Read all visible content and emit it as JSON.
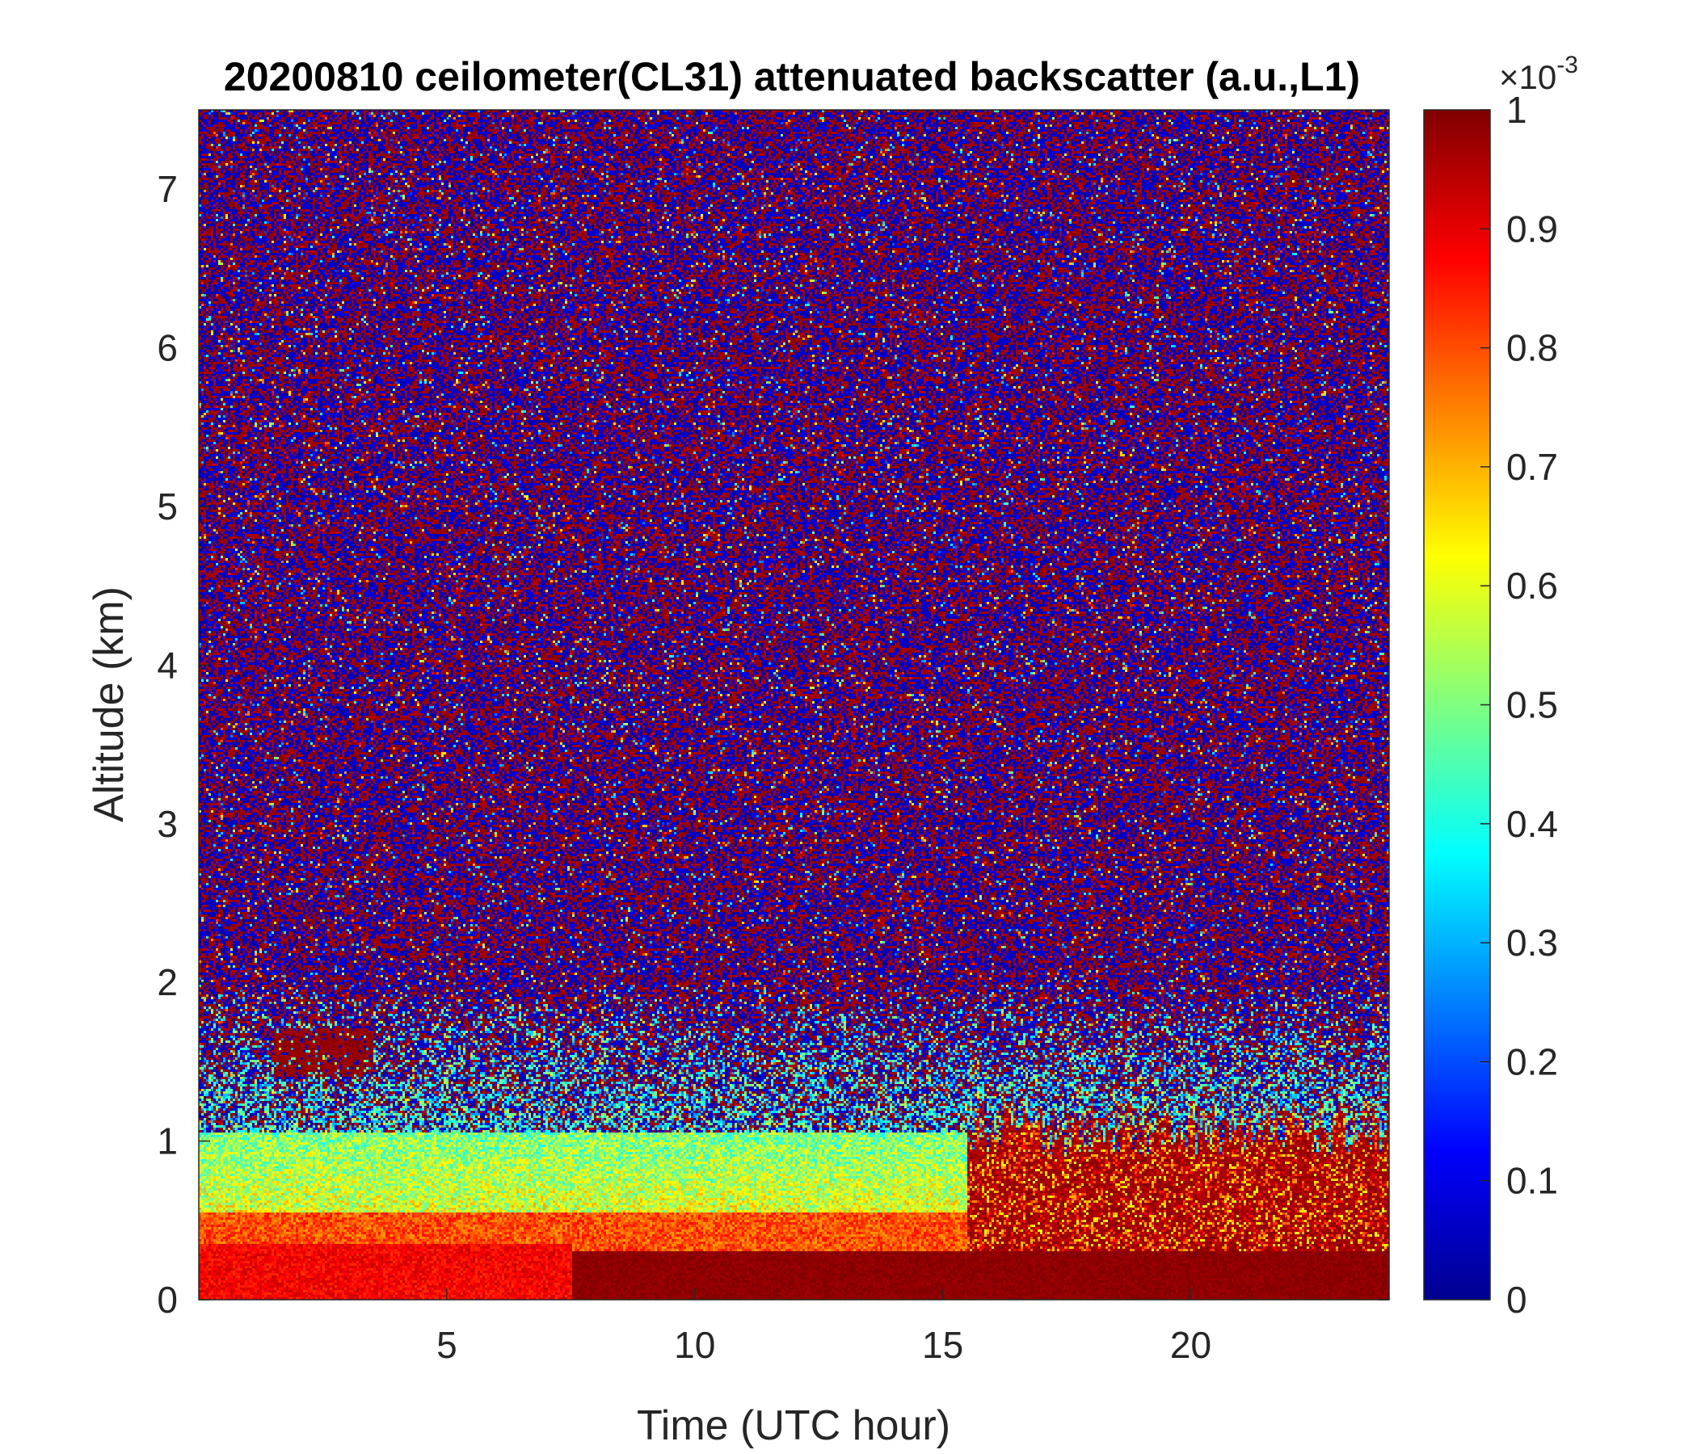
{
  "chart_data": {
    "type": "heatmap",
    "title": "20200810 ceilometer(CL31) attenuated backscatter (a.u.,L1)",
    "xlabel": "Time (UTC hour)",
    "ylabel": "Altitude (km)",
    "xlim": [
      0,
      24
    ],
    "ylim": [
      0,
      7.5
    ],
    "x_ticks": [
      5,
      10,
      15,
      20
    ],
    "y_ticks": [
      0,
      1,
      2,
      3,
      4,
      5,
      6,
      7
    ],
    "colorbar": {
      "colormap": "jet",
      "range": [
        0,
        0.001
      ],
      "exponent_label": "×10",
      "exponent_power": "-3",
      "ticks": [
        0,
        0.1,
        0.2,
        0.3,
        0.4,
        0.5,
        0.6,
        0.7,
        0.8,
        0.9,
        1
      ],
      "tick_labels": [
        "0",
        "0.1",
        "0.2",
        "0.3",
        "0.4",
        "0.5",
        "0.6",
        "0.7",
        "0.8",
        "0.9",
        "1"
      ]
    },
    "features": [
      {
        "description": "Noise-dominated random backscatter",
        "altitude_km": [
          2,
          7.5
        ],
        "time_utc": [
          0,
          24
        ]
      },
      {
        "description": "Boundary layer aerosol (yellow-green)",
        "altitude_km": [
          0.4,
          1.1
        ],
        "time_utc": [
          0,
          15.5
        ]
      },
      {
        "description": "Dense near-surface layer (dark red)",
        "altitude_km": [
          0,
          0.35
        ],
        "time_utc": [
          7.5,
          16
        ]
      },
      {
        "description": "Streaky layer top (dark red)",
        "altitude_km": [
          0,
          1.2
        ],
        "time_utc": [
          16,
          24
        ]
      },
      {
        "description": "Elevated patch (dark red)",
        "altitude_km": [
          1.4,
          1.7
        ],
        "time_utc": [
          1.5,
          3.5
        ]
      }
    ],
    "colors": {
      "low": "#00008f",
      "high": "#800000"
    }
  }
}
